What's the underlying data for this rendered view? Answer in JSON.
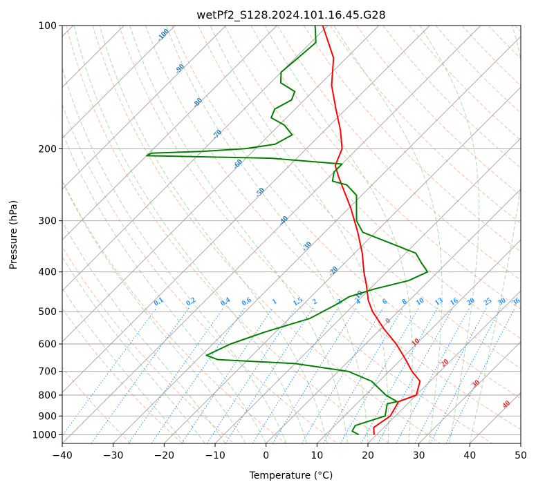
{
  "chart_data": {
    "type": "line",
    "title": "wetPf2_S128.2024.101.16.45.G28",
    "xlabel": "Temperature (°C)",
    "ylabel": "Pressure (hPa)",
    "xlim": [
      -40,
      50
    ],
    "ylim": [
      1050,
      100
    ],
    "y_scale": "log",
    "skew": "skew-T log-p",
    "x_ticks": [
      -40,
      -30,
      -20,
      -10,
      0,
      10,
      20,
      30,
      40,
      50
    ],
    "x_tick_labels": [
      "−40",
      "−30",
      "−20",
      "−10",
      "0",
      "10",
      "20",
      "30",
      "40",
      "50"
    ],
    "y_ticks": [
      100,
      200,
      300,
      400,
      500,
      600,
      700,
      800,
      900,
      1000
    ],
    "y_tick_labels": [
      "100",
      "200",
      "300",
      "400",
      "500",
      "600",
      "700",
      "800",
      "900",
      "1000"
    ],
    "grid": true,
    "series": [
      {
        "role": "temperature",
        "color": "#ff0000",
        "points": [
          {
            "p": 1000,
            "t": 19.5
          },
          {
            "p": 960,
            "t": 18.0
          },
          {
            "p": 900,
            "t": 19.0
          },
          {
            "p": 870,
            "t": 18.5
          },
          {
            "p": 830,
            "t": 17.8
          },
          {
            "p": 800,
            "t": 20.0
          },
          {
            "p": 740,
            "t": 18.0
          },
          {
            "p": 700,
            "t": 14.5
          },
          {
            "p": 650,
            "t": 10.5
          },
          {
            "p": 600,
            "t": 6.0
          },
          {
            "p": 550,
            "t": 0.5
          },
          {
            "p": 500,
            "t": -5.0
          },
          {
            "p": 470,
            "t": -8.0
          },
          {
            "p": 430,
            "t": -11.5
          },
          {
            "p": 400,
            "t": -14.5
          },
          {
            "p": 360,
            "t": -18.5
          },
          {
            "p": 320,
            "t": -23.5
          },
          {
            "p": 280,
            "t": -29.5
          },
          {
            "p": 250,
            "t": -35.0
          },
          {
            "p": 235,
            "t": -38.0
          },
          {
            "p": 220,
            "t": -41.0
          },
          {
            "p": 200,
            "t": -43.0
          },
          {
            "p": 180,
            "t": -47.0
          },
          {
            "p": 160,
            "t": -52.0
          },
          {
            "p": 140,
            "t": -57.5
          },
          {
            "p": 120,
            "t": -62.5
          },
          {
            "p": 100,
            "t": -71.0
          }
        ]
      },
      {
        "role": "dewpoint",
        "color": "#008000",
        "points": [
          {
            "p": 1000,
            "t": 16.5
          },
          {
            "p": 980,
            "t": 14.5
          },
          {
            "p": 950,
            "t": 14.0
          },
          {
            "p": 930,
            "t": 15.5
          },
          {
            "p": 900,
            "t": 18.0
          },
          {
            "p": 870,
            "t": 17.0
          },
          {
            "p": 840,
            "t": 16.0
          },
          {
            "p": 830,
            "t": 17.5
          },
          {
            "p": 800,
            "t": 14.0
          },
          {
            "p": 740,
            "t": 8.5
          },
          {
            "p": 700,
            "t": 2.0
          },
          {
            "p": 670,
            "t": -10.0
          },
          {
            "p": 655,
            "t": -26.0
          },
          {
            "p": 640,
            "t": -29.0
          },
          {
            "p": 600,
            "t": -26.5
          },
          {
            "p": 560,
            "t": -22.0
          },
          {
            "p": 520,
            "t": -16.0
          },
          {
            "p": 480,
            "t": -13.5
          },
          {
            "p": 460,
            "t": -12.5
          },
          {
            "p": 440,
            "t": -9.0
          },
          {
            "p": 420,
            "t": -4.0
          },
          {
            "p": 400,
            "t": -2.0
          },
          {
            "p": 380,
            "t": -5.0
          },
          {
            "p": 360,
            "t": -8.0
          },
          {
            "p": 320,
            "t": -22.5
          },
          {
            "p": 300,
            "t": -26.0
          },
          {
            "p": 260,
            "t": -31.0
          },
          {
            "p": 245,
            "t": -35.0
          },
          {
            "p": 240,
            "t": -38.5
          },
          {
            "p": 228,
            "t": -40.0
          },
          {
            "p": 218,
            "t": -40.0
          },
          {
            "p": 211,
            "t": -55.0
          },
          {
            "p": 208,
            "t": -80.0
          },
          {
            "p": 205,
            "t": -79.5
          },
          {
            "p": 203,
            "t": -70.0
          },
          {
            "p": 200,
            "t": -62.0
          },
          {
            "p": 195,
            "t": -57.0
          },
          {
            "p": 185,
            "t": -55.5
          },
          {
            "p": 175,
            "t": -59.0
          },
          {
            "p": 168,
            "t": -63.0
          },
          {
            "p": 160,
            "t": -64.0
          },
          {
            "p": 152,
            "t": -62.5
          },
          {
            "p": 145,
            "t": -63.5
          },
          {
            "p": 138,
            "t": -68.0
          },
          {
            "p": 130,
            "t": -70.0
          },
          {
            "p": 120,
            "t": -69.5
          },
          {
            "p": 110,
            "t": -69.0
          },
          {
            "p": 100,
            "t": -72.5
          }
        ]
      }
    ],
    "mixing_ratio_labels": [
      "0.1",
      "0.2",
      "0.4",
      "0.6",
      "1",
      "1.5",
      "2",
      "3",
      "4",
      "6",
      "8",
      "10",
      "13",
      "16",
      "20",
      "25",
      "30",
      "36"
    ],
    "mixing_ratio_values": [
      0.1,
      0.2,
      0.4,
      0.6,
      1,
      1.5,
      2,
      3,
      4,
      6,
      8,
      10,
      13,
      16,
      20,
      25,
      30,
      36
    ],
    "dry_adiabat_labels": [
      "10",
      "20",
      "30",
      "40"
    ],
    "dry_adiabat_values": [
      10,
      20,
      30,
      40
    ],
    "moist_adiabat_labels": [
      "-100",
      "-90",
      "-80",
      "-70",
      "-60",
      "-50",
      "-40",
      "-30",
      "-20",
      "-10"
    ],
    "moist_adiabat_values": [
      -100,
      -90,
      -80,
      -70,
      -60,
      -50,
      -40,
      -30,
      -20,
      -10
    ],
    "freezing_label": "0",
    "colors": {
      "isotherm": "#a0a0a0",
      "isobar": "#a0a0a0",
      "dry_adiabat": "#f4a582",
      "moist_adiabat": "#92c78f",
      "mixing_ratio": "#1e90ff",
      "freezing_level": "#d2b48c"
    }
  }
}
